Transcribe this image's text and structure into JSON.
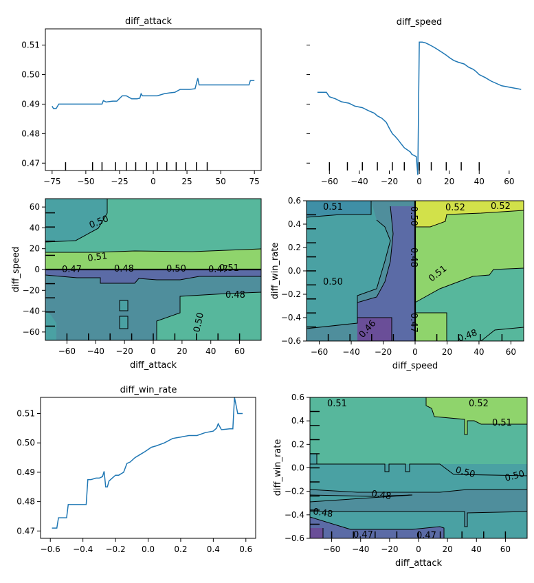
{
  "chart_data": [
    {
      "type": "line",
      "title": "diff_attack",
      "xlabel": "",
      "ylabel": "",
      "xlim": [
        -80,
        80
      ],
      "ylim": [
        0.4675,
        0.5155
      ],
      "xticks": [
        -75,
        -50,
        -25,
        0,
        25,
        50,
        75
      ],
      "yticks": [
        0.47,
        0.48,
        0.49,
        0.5,
        0.51
      ],
      "yticklabels_shown": true,
      "color": "#1f77b4",
      "x": [
        -75,
        -74,
        -72,
        -70,
        -67,
        -62,
        -58,
        -52,
        -46,
        -40,
        -38,
        -37,
        -35,
        -30,
        -27,
        -23,
        -20,
        -16,
        -12,
        -10,
        -9,
        -8,
        -3,
        3,
        8,
        12,
        16,
        20,
        27,
        31,
        33,
        34,
        36,
        45,
        50,
        60,
        68,
        71,
        72,
        75
      ],
      "y": [
        0.4893,
        0.4885,
        0.4885,
        0.49,
        0.49,
        0.49,
        0.49,
        0.49,
        0.49,
        0.49,
        0.49,
        0.4912,
        0.4907,
        0.491,
        0.491,
        0.4928,
        0.4928,
        0.4918,
        0.4918,
        0.492,
        0.4935,
        0.4928,
        0.4928,
        0.4928,
        0.4935,
        0.4938,
        0.494,
        0.495,
        0.495,
        0.4952,
        0.4988,
        0.4965,
        0.4965,
        0.4965,
        0.4965,
        0.4965,
        0.4965,
        0.4965,
        0.498,
        0.498
      ],
      "rug_x": [
        -65,
        -45,
        -38,
        -28,
        -20,
        -13,
        -5,
        3,
        10,
        17,
        24,
        32,
        40
      ]
    },
    {
      "type": "line",
      "title": "diff_speed",
      "xlabel": "",
      "ylabel": "",
      "xlim": [
        -73,
        72
      ],
      "ylim": [
        0.4675,
        0.5155
      ],
      "xticks": [
        -60,
        -40,
        -20,
        0,
        20,
        40,
        60
      ],
      "yticks": [
        0.47,
        0.48,
        0.49,
        0.5,
        0.51
      ],
      "yticklabels_shown": false,
      "color": "#1f77b4",
      "x": [
        -68,
        -62,
        -60,
        -56,
        -52,
        -47,
        -43,
        -38,
        -34,
        -30,
        -28,
        -25,
        -22,
        -20,
        -18,
        -16,
        -14,
        -12,
        -10,
        -8,
        -6,
        -5,
        -2,
        -1,
        0,
        2,
        4,
        6,
        8,
        10,
        12,
        15,
        18,
        20,
        23,
        26,
        30,
        33,
        36,
        38,
        40,
        44,
        48,
        55,
        68
      ],
      "y": [
        0.494,
        0.494,
        0.4925,
        0.4918,
        0.4908,
        0.4903,
        0.4893,
        0.4888,
        0.4878,
        0.4869,
        0.486,
        0.4852,
        0.4838,
        0.4818,
        0.48,
        0.479,
        0.4778,
        0.4765,
        0.4752,
        0.4745,
        0.4738,
        0.473,
        0.4722,
        0.466,
        0.511,
        0.511,
        0.5108,
        0.5103,
        0.5098,
        0.5092,
        0.5086,
        0.5076,
        0.5066,
        0.5058,
        0.5048,
        0.5042,
        0.5036,
        0.5025,
        0.5018,
        0.501,
        0.5,
        0.499,
        0.4978,
        0.4962,
        0.495
      ],
      "rug_x": [
        -60,
        -48,
        -38,
        -28,
        -18,
        -10,
        0,
        8,
        18,
        28,
        40
      ]
    },
    {
      "type": "contour",
      "title": "",
      "xlabel": "diff_attack",
      "ylabel": "diff_speed",
      "xlim": [
        -75,
        75
      ],
      "ylim": [
        -68,
        68
      ],
      "xticks": [
        -60,
        -40,
        -20,
        0,
        20,
        40,
        60
      ],
      "yticks": [
        -60,
        -40,
        -20,
        0,
        20,
        40,
        60
      ],
      "colormap": "viridis",
      "vmin": 0.455,
      "vmax": 0.525,
      "contour_labels": [
        "0.50",
        "0.51",
        "0.47",
        "0.48",
        "0.50",
        "0.47",
        "0.51",
        "0.48",
        "0.50"
      ]
    },
    {
      "type": "contour",
      "title": "",
      "xlabel": "diff_speed",
      "ylabel": "diff_win_rate",
      "xlim": [
        -68,
        68
      ],
      "ylim": [
        -0.6,
        0.6
      ],
      "xticks": [
        -60,
        -40,
        -20,
        0,
        20,
        40,
        60
      ],
      "yticks": [
        -0.6,
        -0.4,
        -0.2,
        0.0,
        0.2,
        0.4,
        0.6
      ],
      "colormap": "viridis",
      "vmin": 0.455,
      "vmax": 0.525,
      "contour_labels": [
        "0.51",
        "0.52",
        "0.52",
        "0.50",
        "0.48",
        "0.50",
        "0.51",
        "0.47",
        "0.46",
        "0.48"
      ]
    },
    {
      "type": "line",
      "title": "diff_win_rate",
      "xlabel": "",
      "ylabel": "",
      "xlim": [
        -0.66,
        0.66
      ],
      "ylim": [
        0.4675,
        0.5155
      ],
      "xticks": [
        -0.6,
        -0.4,
        -0.2,
        0.0,
        0.2,
        0.4,
        0.6
      ],
      "yticks": [
        0.47,
        0.48,
        0.49,
        0.5,
        0.51
      ],
      "yticklabels_shown": true,
      "color": "#1f77b4",
      "x": [
        -0.59,
        -0.56,
        -0.55,
        -0.52,
        -0.5,
        -0.49,
        -0.47,
        -0.43,
        -0.38,
        -0.37,
        -0.35,
        -0.32,
        -0.3,
        -0.28,
        -0.27,
        -0.26,
        -0.25,
        -0.24,
        -0.22,
        -0.2,
        -0.18,
        -0.15,
        -0.13,
        -0.11,
        -0.08,
        -0.05,
        -0.02,
        0.02,
        0.05,
        0.1,
        0.15,
        0.2,
        0.25,
        0.3,
        0.35,
        0.4,
        0.42,
        0.43,
        0.45,
        0.5,
        0.52,
        0.53,
        0.55,
        0.58
      ],
      "y": [
        0.471,
        0.471,
        0.4745,
        0.4745,
        0.4745,
        0.479,
        0.479,
        0.479,
        0.479,
        0.4875,
        0.4875,
        0.488,
        0.488,
        0.4885,
        0.4903,
        0.485,
        0.485,
        0.487,
        0.488,
        0.489,
        0.489,
        0.49,
        0.493,
        0.4935,
        0.495,
        0.496,
        0.497,
        0.4985,
        0.499,
        0.5,
        0.5015,
        0.502,
        0.5025,
        0.5025,
        0.5035,
        0.504,
        0.505,
        0.5065,
        0.5045,
        0.5048,
        0.5048,
        0.5155,
        0.51,
        0.51
      ],
      "rug_x": []
    },
    {
      "type": "contour",
      "title": "",
      "xlabel": "diff_attack",
      "ylabel": "diff_win_rate",
      "xlim": [
        -75,
        75
      ],
      "ylim": [
        -0.6,
        0.6
      ],
      "xticks": [
        -60,
        -40,
        -20,
        0,
        20,
        40,
        60
      ],
      "yticks": [
        -0.6,
        -0.4,
        -0.2,
        0.0,
        0.2,
        0.4,
        0.6
      ],
      "colormap": "viridis",
      "vmin": 0.455,
      "vmax": 0.525,
      "contour_labels": [
        "0.51",
        "0.52",
        "0.51",
        "0.50",
        "0.50",
        "0.48",
        "0.48",
        "0.47",
        "0.47"
      ]
    }
  ]
}
